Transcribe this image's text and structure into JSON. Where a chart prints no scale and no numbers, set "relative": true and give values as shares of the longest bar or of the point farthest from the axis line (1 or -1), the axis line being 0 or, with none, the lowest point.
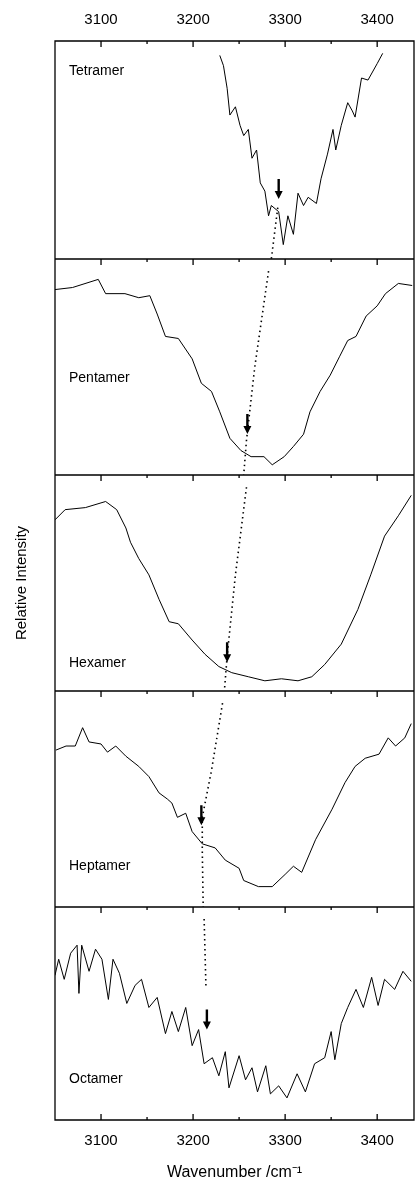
{
  "chart_data": [
    {
      "type": "line",
      "relative": true,
      "xlim": [
        3050,
        3440
      ],
      "xticks": [
        3100,
        {
          "value": 3150,
          "label": null
        },
        3200,
        {
          "value": 3250,
          "label": null
        },
        3300,
        {
          "value": 3350,
          "label": null
        },
        3400
      ],
      "tick_labels": "x",
      "annotations": [
        "Tetramer"
      ],
      "series": [
        {
          "color": "#000000",
          "x": [
            3229,
            3233,
            3237,
            3240,
            3246,
            3251,
            3255,
            3260,
            3264,
            3269,
            3273,
            3278,
            3282,
            3285,
            3293,
            3298,
            3303,
            3309,
            3314,
            3320,
            3325,
            3334,
            3339,
            3346,
            3352,
            3355,
            3361,
            3368,
            3373,
            3376,
            3383,
            3390,
            3400,
            3406
          ],
          "values": [
            0.99,
            0.94,
            0.83,
            0.7,
            0.74,
            0.65,
            0.6,
            0.63,
            0.49,
            0.53,
            0.37,
            0.33,
            0.21,
            0.26,
            0.23,
            0.07,
            0.21,
            0.12,
            0.32,
            0.26,
            0.3,
            0.27,
            0.39,
            0.51,
            0.63,
            0.53,
            0.65,
            0.76,
            0.72,
            0.69,
            0.88,
            0.87,
            0.95,
            1
          ]
        },
        {
          "color": "#000000",
          "line_style": "dotted",
          "x": [
            3292,
            3285
          ],
          "values": [
            0.25,
            0
          ]
        },
        {
          "type": "scatter",
          "marker": "triangle",
          "color": "#000000",
          "x": [
            3293
          ],
          "values": [
            0.34
          ]
        }
      ]
    },
    {
      "type": "line",
      "relative": true,
      "xlim": [
        3050,
        3440
      ],
      "xticks": [
        3100,
        {
          "value": 3150,
          "label": null
        },
        3200,
        {
          "value": 3250,
          "label": null
        },
        3300,
        {
          "value": 3350,
          "label": null
        },
        3400
      ],
      "tick_labels": false,
      "annotations": [
        "Pentamer"
      ],
      "series": [
        {
          "color": "#000000",
          "x": [
            3050,
            3069,
            3097,
            3105,
            3126,
            3141,
            3153,
            3161,
            3170,
            3184,
            3199,
            3209,
            3220,
            3229,
            3240,
            3252,
            3263,
            3277,
            3286,
            3299,
            3309,
            3320,
            3327,
            3338,
            3349,
            3359,
            3368,
            3377,
            3388,
            3400,
            3409,
            3423,
            3438
          ],
          "values": [
            0.91,
            0.92,
            0.96,
            0.89,
            0.89,
            0.87,
            0.88,
            0.79,
            0.68,
            0.67,
            0.57,
            0.45,
            0.41,
            0.31,
            0.18,
            0.12,
            0.09,
            0.09,
            0.05,
            0.09,
            0.14,
            0.2,
            0.31,
            0.41,
            0.49,
            0.58,
            0.66,
            0.68,
            0.78,
            0.83,
            0.89,
            0.94,
            0.93
          ]
        },
        {
          "color": "#000000",
          "line_style": "dotted",
          "x": [
            3282,
            3267,
            3258,
            3255
          ],
          "values": [
            1,
            0.53,
            0.17,
            0
          ]
        },
        {
          "type": "scatter",
          "marker": "triangle",
          "color": "#000000",
          "x": [
            3259
          ],
          "values": [
            0.25
          ]
        }
      ]
    },
    {
      "type": "line",
      "relative": true,
      "xlim": [
        3050,
        3440
      ],
      "xticks": [
        3100,
        {
          "value": 3150,
          "label": null
        },
        3200,
        {
          "value": 3250,
          "label": null
        },
        3300,
        {
          "value": 3350,
          "label": null
        },
        3400
      ],
      "tick_labels": false,
      "ylabel": "Relative Intensity",
      "annotations": [
        "Hexamer"
      ],
      "series": [
        {
          "color": "#000000",
          "x": [
            3050,
            3061,
            3083,
            3105,
            3117,
            3127,
            3132,
            3141,
            3152,
            3163,
            3174,
            3184,
            3199,
            3213,
            3228,
            3242,
            3260,
            3278,
            3296,
            3314,
            3329,
            3343,
            3361,
            3379,
            3393,
            3408,
            3423,
            3437
          ],
          "values": [
            0.84,
            0.89,
            0.9,
            0.93,
            0.89,
            0.8,
            0.73,
            0.65,
            0.57,
            0.45,
            0.34,
            0.33,
            0.25,
            0.18,
            0.12,
            0.09,
            0.07,
            0.05,
            0.06,
            0.05,
            0.07,
            0.13,
            0.23,
            0.4,
            0.57,
            0.76,
            0.86,
            0.96
          ]
        },
        {
          "color": "#000000",
          "line_style": "dotted",
          "x": [
            3258,
            3246,
            3237,
            3234
          ],
          "values": [
            1,
            0.57,
            0.17,
            0
          ]
        },
        {
          "type": "scatter",
          "marker": "triangle",
          "color": "#000000",
          "x": [
            3237
          ],
          "values": [
            0.19
          ]
        }
      ]
    },
    {
      "type": "line",
      "relative": true,
      "xlim": [
        3050,
        3440
      ],
      "xticks": [
        3100,
        {
          "value": 3150,
          "label": null
        },
        3200,
        {
          "value": 3250,
          "label": null
        },
        3300,
        {
          "value": 3350,
          "label": null
        },
        3400
      ],
      "tick_labels": false,
      "annotations": [
        "Heptamer"
      ],
      "series": [
        {
          "color": "#000000",
          "x": [
            3051,
            3062,
            3072,
            3080,
            3087,
            3100,
            3107,
            3116,
            3127,
            3141,
            3152,
            3163,
            3172,
            3177,
            3183,
            3192,
            3199,
            3210,
            3224,
            3235,
            3250,
            3255,
            3271,
            3286,
            3300,
            3309,
            3318,
            3333,
            3351,
            3365,
            3376,
            3387,
            3402,
            3412,
            3420,
            3430,
            3437
          ],
          "values": [
            0.77,
            0.79,
            0.79,
            0.88,
            0.81,
            0.8,
            0.76,
            0.79,
            0.74,
            0.69,
            0.64,
            0.56,
            0.53,
            0.51,
            0.44,
            0.46,
            0.37,
            0.31,
            0.29,
            0.23,
            0.19,
            0.13,
            0.1,
            0.1,
            0.16,
            0.2,
            0.17,
            0.33,
            0.48,
            0.61,
            0.69,
            0.73,
            0.75,
            0.83,
            0.79,
            0.83,
            0.9
          ]
        },
        {
          "color": "#000000",
          "line_style": "dotted",
          "x": [
            3232,
            3220,
            3210,
            3210,
            3211
          ],
          "values": [
            1,
            0.67,
            0.44,
            0.28,
            0
          ]
        },
        {
          "type": "scatter",
          "marker": "triangle",
          "color": "#000000",
          "x": [
            3209
          ],
          "values": [
            0.45
          ]
        }
      ]
    },
    {
      "type": "line",
      "relative": true,
      "xlim": [
        3050,
        3440
      ],
      "xticks": [
        3100,
        {
          "value": 3150,
          "label": null
        },
        3200,
        {
          "value": 3250,
          "label": null
        },
        3300,
        {
          "value": 3350,
          "label": null
        },
        3400
      ],
      "tick_labels": "x",
      "xlabel": "Wavenumber /cm⁻¹",
      "annotations": [
        "Octamer"
      ],
      "series": [
        {
          "color": "#000000",
          "x": [
            3050,
            3054,
            3060,
            3067,
            3074,
            3076,
            3079,
            3087,
            3094,
            3101,
            3108,
            3113,
            3120,
            3128,
            3137,
            3144,
            3152,
            3161,
            3170,
            3177,
            3184,
            3192,
            3199,
            3206,
            3212,
            3221,
            3228,
            3235,
            3239,
            3250,
            3257,
            3264,
            3270,
            3279,
            3284,
            3293,
            3302,
            3313,
            3322,
            3332,
            3343,
            3350,
            3354,
            3361,
            3368,
            3377,
            3385,
            3394,
            3401,
            3408,
            3419,
            3428,
            3437
          ],
          "values": [
            0.72,
            0.8,
            0.7,
            0.83,
            0.87,
            0.63,
            0.87,
            0.74,
            0.85,
            0.8,
            0.6,
            0.8,
            0.73,
            0.58,
            0.67,
            0.7,
            0.56,
            0.61,
            0.43,
            0.54,
            0.44,
            0.56,
            0.37,
            0.45,
            0.28,
            0.31,
            0.22,
            0.34,
            0.16,
            0.32,
            0.2,
            0.26,
            0.14,
            0.27,
            0.13,
            0.17,
            0.11,
            0.23,
            0.14,
            0.28,
            0.31,
            0.44,
            0.3,
            0.48,
            0.56,
            0.65,
            0.56,
            0.71,
            0.57,
            0.7,
            0.65,
            0.74,
            0.69
          ]
        },
        {
          "color": "#000000",
          "line_style": "dotted",
          "x": [
            3212,
            3214
          ],
          "values": [
            1,
            0.66
          ]
        },
        {
          "type": "scatter",
          "marker": "triangle",
          "color": "#000000",
          "x": [
            3215
          ],
          "values": [
            0.5
          ]
        }
      ]
    }
  ]
}
